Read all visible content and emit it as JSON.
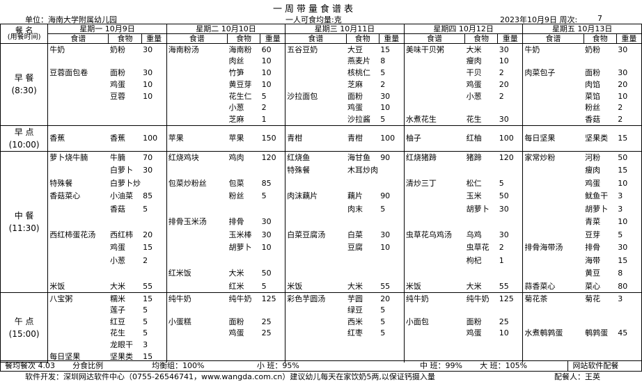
{
  "title": "一周带量食谱表",
  "unit": "单位：海南大学附属幼儿园",
  "per_person": "一人可食均量:克",
  "date": "2023年10月9日 周次:",
  "week": 7,
  "header": {
    "meal": "餐 名",
    "meal_time": "(用餐时间)",
    "days": [
      "星期一 10月9日",
      "星期二 10月10日",
      "星期三 10月11日",
      "星期四 10月12日",
      "星期五 10月13日"
    ],
    "columns": [
      "食谱",
      "食物",
      "重量"
    ]
  },
  "meals": [
    {
      "name": "早 餐",
      "time": "(8:30)",
      "rows": [
        [
          "牛奶",
          "奶粉",
          30,
          "海南粉汤",
          "海南粉",
          60,
          "五谷豆奶",
          "大豆",
          15,
          "美味干贝粥",
          "大米",
          30,
          "牛奶",
          "奶粉",
          30
        ],
        [
          null,
          null,
          null,
          null,
          "肉丝",
          10,
          null,
          "燕麦片",
          8,
          null,
          "瘦肉",
          10,
          null,
          null,
          null
        ],
        [
          "豆蓉面包卷",
          "面粉",
          30,
          null,
          "竹笋",
          10,
          null,
          "核桃仁",
          5,
          null,
          "干贝",
          2,
          "肉菜包子",
          "面粉",
          30
        ],
        [
          null,
          "鸡蛋",
          10,
          null,
          "黄豆芽",
          10,
          null,
          "芝麻",
          2,
          null,
          "鸡蛋",
          20,
          null,
          "肉馅",
          20
        ],
        [
          null,
          "豆蓉",
          10,
          null,
          "花生仁",
          5,
          "沙拉面包",
          "面粉",
          30,
          null,
          "小葱",
          2,
          null,
          "菜馅",
          10
        ],
        [
          null,
          null,
          null,
          null,
          "小葱",
          2,
          null,
          "鸡蛋",
          10,
          null,
          null,
          null,
          null,
          "粉丝",
          2
        ],
        [
          null,
          null,
          null,
          null,
          "芝麻",
          1,
          null,
          "沙拉酱",
          5,
          "水煮花生",
          "花生",
          30,
          null,
          "香菇",
          2
        ]
      ]
    },
    {
      "name": "早 点",
      "time": "(10:00)",
      "rows": [
        [
          "香蕉",
          "香蕉",
          100,
          "苹果",
          "苹果",
          150,
          "青柑",
          "青柑",
          100,
          "柚子",
          "红柚",
          100,
          "每日坚果",
          "坚果类",
          15
        ]
      ]
    },
    {
      "name": "中 餐",
      "time": "(11:30)",
      "rows": [
        [
          "萝卜烧牛腩",
          "牛腩",
          70,
          "红烧鸡块",
          "鸡肉",
          120,
          "红烧鱼",
          "海甘鱼",
          90,
          "红烧猪蹄",
          "猪蹄",
          120,
          "家常炒粉",
          "河粉",
          50
        ],
        [
          null,
          "白萝卜",
          30,
          null,
          null,
          null,
          "特殊餐",
          "木耳炒肉",
          null,
          null,
          null,
          null,
          null,
          "瘦肉",
          15
        ],
        [
          "特殊餐",
          "白萝卜炒肉",
          null,
          "包菜炒粉丝",
          "包菜",
          85,
          null,
          null,
          null,
          "清炒三丁",
          "松仁",
          5,
          null,
          "鸡蛋",
          10
        ],
        [
          "香菇菜心",
          "小油菜",
          85,
          null,
          "粉丝",
          5,
          "肉沫藕片",
          "藕片",
          90,
          null,
          "玉米",
          50,
          null,
          "鱿鱼干",
          3
        ],
        [
          null,
          "香菇",
          5,
          null,
          null,
          null,
          null,
          "肉末",
          5,
          null,
          "胡萝卜",
          30,
          null,
          "胡萝卜",
          3
        ],
        [
          null,
          null,
          null,
          "排骨玉米汤",
          "排骨",
          30,
          null,
          null,
          null,
          null,
          null,
          null,
          null,
          "青菜",
          10
        ],
        [
          "西红柿蛋花汤",
          "西红柿",
          20,
          null,
          "玉米棒",
          30,
          "白菜豆腐汤",
          "白菜",
          30,
          "虫草花乌鸡汤",
          "乌鸡",
          30,
          null,
          "豆芽",
          5
        ],
        [
          null,
          "鸡蛋",
          15,
          null,
          "胡萝卜",
          10,
          null,
          "豆腐",
          10,
          null,
          "虫草花",
          2,
          "排骨海带汤",
          "排骨",
          30
        ],
        [
          null,
          "小葱",
          2,
          null,
          null,
          null,
          null,
          null,
          null,
          null,
          "枸杞",
          1,
          null,
          "海带",
          15
        ],
        [
          null,
          null,
          null,
          "红米饭",
          "大米",
          50,
          null,
          null,
          null,
          null,
          null,
          null,
          null,
          "黄豆",
          8
        ],
        [
          "米饭",
          "大米",
          55,
          null,
          "红米",
          5,
          "米饭",
          "大米",
          55,
          "米饭",
          "大米",
          55,
          "蒜香菜心",
          "菜心",
          80
        ]
      ]
    },
    {
      "name": "午 点",
      "time": "(15:00)",
      "rows": [
        [
          "八宝粥",
          "糯米",
          15,
          "纯牛奶",
          "纯牛奶",
          125,
          "彩色芋圆汤",
          "芋圆",
          20,
          "纯牛奶",
          "纯牛奶",
          125,
          "菊花茶",
          "菊花",
          3
        ],
        [
          null,
          "莲子",
          5,
          null,
          null,
          null,
          null,
          "绿豆",
          5,
          null,
          null,
          null,
          null,
          null,
          null
        ],
        [
          null,
          "红豆",
          5,
          "小蛋糕",
          "面粉",
          25,
          null,
          "西米",
          5,
          "小面包",
          "面粉",
          25,
          null,
          null,
          null
        ],
        [
          null,
          "花生",
          5,
          null,
          "鸡蛋",
          25,
          null,
          "红枣",
          5,
          null,
          "鸡蛋",
          10,
          "水煮鹌鹑蛋",
          "鹌鹑蛋",
          45
        ],
        [
          null,
          "龙眼干",
          3,
          null,
          null,
          null,
          null,
          null,
          null,
          null,
          null,
          null,
          null,
          null,
          null
        ],
        [
          "每日坚果",
          "坚果类",
          15,
          null,
          null,
          null,
          null,
          null,
          null,
          null,
          null,
          null,
          null,
          null,
          null
        ]
      ]
    }
  ],
  "footer": [
    "餐均餐次 4.03",
    "分食比例",
    "均衡组：100%",
    "小 班：95%",
    "中 班：99%",
    "大 班：105%",
    "网站软件配餐"
  ],
  "note": "软件开发：深圳网达软件中心（0755-26546741，www.wangda.com.cn）建议幼儿每天在家饮奶5两,以保证钙摄入量",
  "planner": "配餐人：王英"
}
